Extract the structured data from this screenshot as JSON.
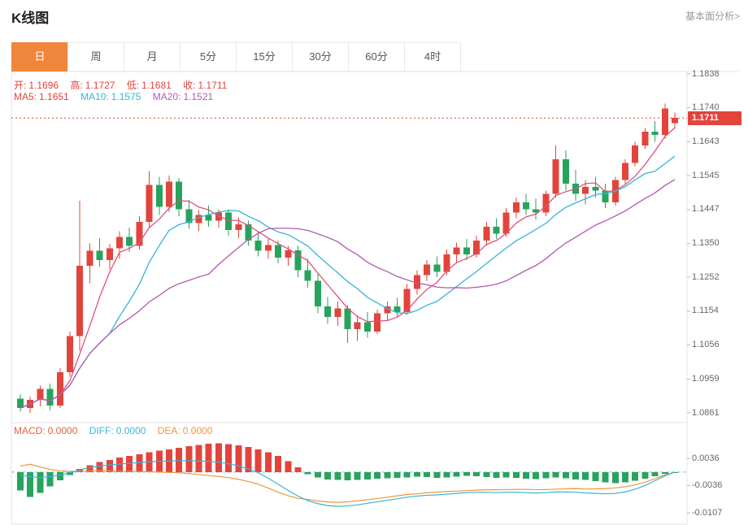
{
  "header": {
    "title": "K线图",
    "link": "基本面分析>"
  },
  "tabs": {
    "active_tab": "日",
    "items": [
      {
        "label": "日"
      },
      {
        "label": "周"
      },
      {
        "label": "月"
      },
      {
        "label": "5分"
      },
      {
        "label": "15分"
      },
      {
        "label": "30分"
      },
      {
        "label": "60分"
      },
      {
        "label": "4时"
      }
    ]
  },
  "legend": {
    "ohlc": [
      {
        "label": "开:",
        "value": "1.1696"
      },
      {
        "label": "高:",
        "value": "1.1727"
      },
      {
        "label": "低:",
        "value": "1.1681"
      },
      {
        "label": "收:",
        "value": "1.1711"
      }
    ],
    "ohlc_color": "#e2443c",
    "ma": [
      {
        "label": "MA5:",
        "value": "1.1651",
        "color": "#e2443c"
      },
      {
        "label": "MA10:",
        "value": "1.1575",
        "color": "#35b5d8"
      },
      {
        "label": "MA20:",
        "value": "1.1521",
        "color": "#b05ab0"
      }
    ]
  },
  "macd_legend": [
    {
      "label": "MACD:",
      "value": "0.0000",
      "color": "#e8633c"
    },
    {
      "label": "DIFF:",
      "value": "0.0000",
      "color": "#35b5d8"
    },
    {
      "label": "DEA:",
      "value": "0.0000",
      "color": "#f0953c"
    }
  ],
  "price_tag": {
    "value": "1.1711",
    "color": "#e2443c"
  },
  "chart_data": {
    "type": "candlestick",
    "title": "K线图",
    "main": {
      "y_labels": [
        "1.1838",
        "1.1740",
        "1.1643",
        "1.1545",
        "1.1447",
        "1.1350",
        "1.1252",
        "1.1154",
        "1.1056",
        "1.0959",
        "1.0861"
      ],
      "y_max": 1.1838,
      "y_min": 1.0861,
      "current_price": 1.1711,
      "ma_periods": [
        5,
        10,
        20
      ],
      "colors": {
        "up": "#e2443c",
        "down": "#28a35c",
        "ma5": "#e0507a",
        "ma10": "#35b5d8",
        "ma20": "#b05ab0"
      },
      "candles": [
        [
          1.0902,
          1.0915,
          1.0865,
          1.0875
        ],
        [
          1.0875,
          1.0908,
          1.0861,
          1.0898
        ],
        [
          1.0898,
          1.094,
          1.088,
          1.093
        ],
        [
          1.093,
          1.0945,
          1.0868,
          1.0882
        ],
        [
          1.0882,
          1.099,
          1.0875,
          1.0978
        ],
        [
          1.0978,
          1.1095,
          1.0965,
          1.1082
        ],
        [
          1.1082,
          1.1472,
          1.104,
          1.1285
        ],
        [
          1.1285,
          1.135,
          1.1235,
          1.1328
        ],
        [
          1.1328,
          1.1365,
          1.1282,
          1.1302
        ],
        [
          1.1302,
          1.1348,
          1.1275,
          1.1335
        ],
        [
          1.1335,
          1.1385,
          1.1305,
          1.1368
        ],
        [
          1.1368,
          1.1395,
          1.1325,
          1.1342
        ],
        [
          1.1342,
          1.1428,
          1.1332,
          1.1412
        ],
        [
          1.1412,
          1.1558,
          1.1398,
          1.1518
        ],
        [
          1.1518,
          1.1542,
          1.1432,
          1.1455
        ],
        [
          1.1455,
          1.1545,
          1.144,
          1.1528
        ],
        [
          1.1528,
          1.1538,
          1.1428,
          1.1448
        ],
        [
          1.1448,
          1.1475,
          1.1392,
          1.1408
        ],
        [
          1.1408,
          1.1445,
          1.1385,
          1.1432
        ],
        [
          1.1432,
          1.1458,
          1.1398,
          1.1415
        ],
        [
          1.1415,
          1.1448,
          1.1395,
          1.1438
        ],
        [
          1.1438,
          1.1448,
          1.1372,
          1.1388
        ],
        [
          1.1388,
          1.1425,
          1.1365,
          1.1405
        ],
        [
          1.1405,
          1.1415,
          1.1342,
          1.1358
        ],
        [
          1.1358,
          1.1382,
          1.1312,
          1.1328
        ],
        [
          1.1328,
          1.1365,
          1.1305,
          1.1345
        ],
        [
          1.1345,
          1.1358,
          1.1292,
          1.1308
        ],
        [
          1.1308,
          1.1342,
          1.1285,
          1.133
        ],
        [
          1.133,
          1.1342,
          1.1252,
          1.1272
        ],
        [
          1.1272,
          1.1305,
          1.1222,
          1.1242
        ],
        [
          1.1242,
          1.1262,
          1.1148,
          1.1168
        ],
        [
          1.1168,
          1.1195,
          1.1118,
          1.1138
        ],
        [
          1.1138,
          1.1182,
          1.1112,
          1.1162
        ],
        [
          1.1162,
          1.1172,
          1.1062,
          1.1102
        ],
        [
          1.1102,
          1.1142,
          1.1068,
          1.1122
        ],
        [
          1.1122,
          1.1152,
          1.1078,
          1.1095
        ],
        [
          1.1095,
          1.1158,
          1.1088,
          1.1148
        ],
        [
          1.1148,
          1.1182,
          1.1128,
          1.1168
        ],
        [
          1.1168,
          1.1192,
          1.1138,
          1.1152
        ],
        [
          1.1152,
          1.1232,
          1.1145,
          1.1218
        ],
        [
          1.1218,
          1.1272,
          1.1202,
          1.1258
        ],
        [
          1.1258,
          1.1302,
          1.1242,
          1.1288
        ],
        [
          1.1288,
          1.1312,
          1.1252,
          1.1268
        ],
        [
          1.1268,
          1.1332,
          1.1258,
          1.1318
        ],
        [
          1.1318,
          1.1352,
          1.1292,
          1.1338
        ],
        [
          1.1338,
          1.1362,
          1.1302,
          1.1318
        ],
        [
          1.1318,
          1.1372,
          1.1308,
          1.1358
        ],
        [
          1.1358,
          1.1412,
          1.1342,
          1.1398
        ],
        [
          1.1398,
          1.1422,
          1.1362,
          1.1378
        ],
        [
          1.1378,
          1.1452,
          1.1368,
          1.1438
        ],
        [
          1.1438,
          1.1482,
          1.1422,
          1.1468
        ],
        [
          1.1468,
          1.1492,
          1.1432,
          1.1448
        ],
        [
          1.1448,
          1.1478,
          1.1418,
          1.1438
        ],
        [
          1.1438,
          1.1502,
          1.1428,
          1.1492
        ],
        [
          1.1492,
          1.1632,
          1.1482,
          1.1592
        ],
        [
          1.1592,
          1.1618,
          1.1502,
          1.1522
        ],
        [
          1.1522,
          1.1562,
          1.1472,
          1.1492
        ],
        [
          1.1492,
          1.1532,
          1.1462,
          1.1512
        ],
        [
          1.1512,
          1.1542,
          1.1482,
          1.1502
        ],
        [
          1.1502,
          1.1522,
          1.1452,
          1.1468
        ],
        [
          1.1468,
          1.1542,
          1.1458,
          1.1532
        ],
        [
          1.1532,
          1.1592,
          1.1522,
          1.1582
        ],
        [
          1.1582,
          1.1642,
          1.1572,
          1.1632
        ],
        [
          1.1632,
          1.1682,
          1.1622,
          1.1672
        ],
        [
          1.1672,
          1.1702,
          1.1642,
          1.1662
        ],
        [
          1.1662,
          1.1752,
          1.1652,
          1.1738
        ],
        [
          1.1696,
          1.1727,
          1.1681,
          1.1711
        ]
      ]
    },
    "macd": {
      "y_labels": [
        "0.0036",
        "-0.0036",
        "-0.0107"
      ],
      "colors": {
        "diff": "#35b5d8",
        "dea": "#f0953c",
        "zero_line": "#7ecbe0"
      },
      "hist": [
        -0.0048,
        -0.0065,
        -0.0055,
        -0.0038,
        -0.0022,
        -0.0008,
        0.0008,
        0.0018,
        0.0026,
        0.0032,
        0.0038,
        0.0042,
        0.0047,
        0.0052,
        0.0056,
        0.006,
        0.0064,
        0.0068,
        0.0071,
        0.0074,
        0.0075,
        0.0073,
        0.007,
        0.0066,
        0.006,
        0.0052,
        0.0042,
        0.0028,
        0.0012,
        -0.0006,
        -0.0014,
        -0.0019,
        -0.0021,
        -0.0022,
        -0.0021,
        -0.0019,
        -0.0017,
        -0.0016,
        -0.0015,
        -0.0014,
        -0.0012,
        -0.0013,
        -0.0015,
        -0.0014,
        -0.0012,
        -0.001,
        -0.0011,
        -0.0013,
        -0.0015,
        -0.0014,
        -0.0015,
        -0.0017,
        -0.0018,
        -0.0016,
        -0.0014,
        -0.0016,
        -0.0019,
        -0.0021,
        -0.0024,
        -0.0027,
        -0.0029,
        -0.0027,
        -0.0023,
        -0.0017,
        -0.0011,
        -0.0005,
        0.0
      ],
      "diff": [
        -0.0008,
        -0.0012,
        -0.0014,
        -0.0012,
        -0.0008,
        -0.0002,
        0.0006,
        0.0012,
        0.0016,
        0.0019,
        0.0021,
        0.0023,
        0.0025,
        0.0027,
        0.0028,
        0.0029,
        0.003,
        0.003,
        0.0029,
        0.0028,
        0.0026,
        0.0022,
        0.0016,
        0.0008,
        -0.0002,
        -0.0016,
        -0.0032,
        -0.0048,
        -0.0063,
        -0.0075,
        -0.0083,
        -0.0088,
        -0.009,
        -0.0089,
        -0.0086,
        -0.0082,
        -0.0078,
        -0.0074,
        -0.007,
        -0.0066,
        -0.0063,
        -0.0061,
        -0.006,
        -0.0058,
        -0.0056,
        -0.0054,
        -0.0053,
        -0.0053,
        -0.0054,
        -0.0053,
        -0.0053,
        -0.0054,
        -0.0055,
        -0.0054,
        -0.0052,
        -0.0052,
        -0.0053,
        -0.0055,
        -0.0056,
        -0.0057,
        -0.0056,
        -0.0052,
        -0.0045,
        -0.0035,
        -0.0023,
        -0.001,
        0.0
      ]
    }
  }
}
